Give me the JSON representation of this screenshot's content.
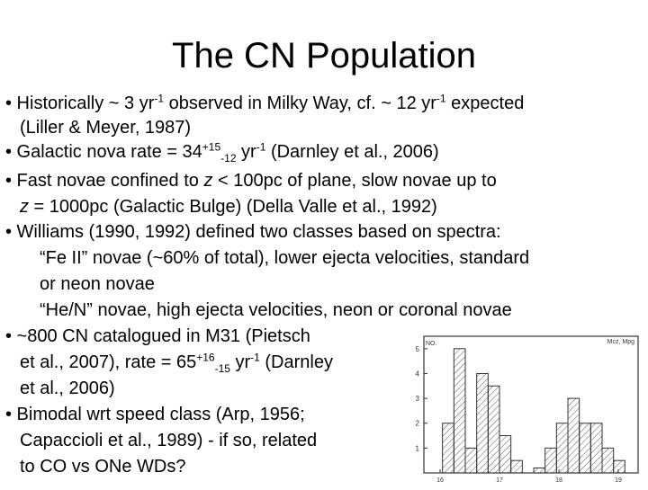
{
  "title": "The CN Population",
  "bullets": {
    "b1": {
      "a": "• Historically ~ 3 yr",
      "a_sup": "-1",
      "b": " observed in Milky Way, cf. ~ 12 yr",
      "b_sup": "-1",
      "c": " expected",
      "line2": "(Liller & Meyer, 1987)"
    },
    "b2": {
      "a": "• Galactic nova rate = 34",
      "sup": "+15",
      "sub": "-12",
      "b": " yr",
      "b_sup": "-1",
      "c": " (Darnley et al., 2006)"
    },
    "b3": {
      "line1_a": "• Fast novae confined to ",
      "line1_z": "z",
      "line1_b": " < 100pc of plane, slow novae up to",
      "line2_z": "z",
      "line2_b": " = 1000pc (Galactic Bulge) (Della Valle et al., 1992)"
    },
    "b4": {
      "line1": "• Williams (1990, 1992) defined two classes based on spectra:",
      "line2": "“Fe II” novae (~60% of total), lower ejecta velocities, standard",
      "line3": "or neon novae",
      "line4": "“He/N” novae, high ejecta velocities, neon or coronal novae"
    },
    "b5": {
      "line1": "• ~800 CN catalogued in M31 (Pietsch",
      "line2_a": "et al., 2007), rate = 65",
      "sup": "+16",
      "sub": "-15",
      "line2_b": " yr",
      "line2_sup": "-1",
      "line2_c": " (Darnley",
      "line3": "et al., 2006)"
    },
    "b6": {
      "line1": "• Bimodal wrt speed class (Arp, 1956;",
      "line2": "Capaccioli et al., 1989) - if so, related",
      "line3": "to CO vs ONe WDs?"
    }
  },
  "histogram": {
    "ylabel": "NO.",
    "y_ticks": [
      "5",
      "4",
      "3",
      "2",
      "1"
    ],
    "x_ticks": [
      "16",
      "17",
      "18",
      "19"
    ],
    "xlabel": "Mcz, Mpg",
    "chart_data": {
      "type": "bar",
      "ylabel": "NO.",
      "xlabel": "Mcz, Mpg",
      "x_ticks": [
        "16",
        "17",
        "18",
        "19"
      ],
      "values": [
        0,
        2,
        5,
        1,
        4,
        3.5,
        1.5,
        0.5,
        0,
        0.2,
        1,
        2,
        3,
        2,
        2,
        1,
        0.5,
        0
      ]
    }
  }
}
